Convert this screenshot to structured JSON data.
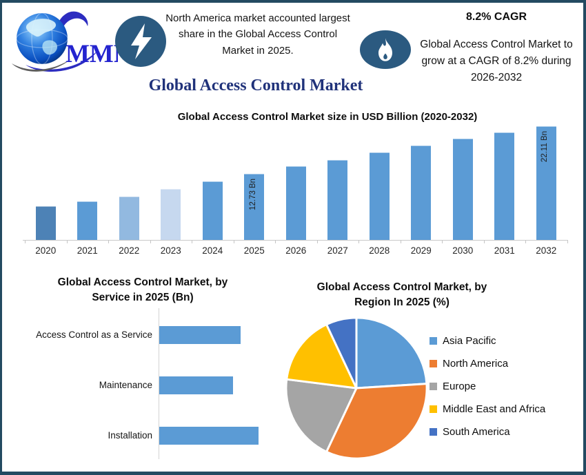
{
  "header": {
    "logo_text": "MMR",
    "note_left": "North America market accounted largest share in the Global Access Control Market in 2025.",
    "cagr_title": "8.2% CAGR",
    "cagr_text": "Global Access Control Market to grow at a CAGR of 8.2% during 2026-2032"
  },
  "page_title": "Global Access Control Market",
  "colors": {
    "frame_border": "#234a61",
    "badge": "#2b5a80",
    "title": "#20327a",
    "bar_default": "#5b9bd5",
    "axis_line": "#c9c9c9"
  },
  "chart_data": [
    {
      "type": "bar",
      "title": "Global Access Control Market size in USD Billion (2020-2032)",
      "categories": [
        "2020",
        "2021",
        "2022",
        "2023",
        "2024",
        "2025",
        "2026",
        "2027",
        "2028",
        "2029",
        "2030",
        "2031",
        "2032"
      ],
      "values": [
        6.4,
        7.4,
        8.4,
        9.8,
        11.3,
        12.73,
        14.3,
        15.4,
        16.9,
        18.3,
        19.6,
        20.8,
        22.11
      ],
      "unit": "USD Bn",
      "bar_labels": [
        "",
        "",
        "",
        "",
        "",
        "12.73 Bn",
        "",
        "",
        "",
        "",
        "",
        "",
        "22.11 Bn"
      ],
      "bar_colors": [
        "#4d82b6",
        "#5b9bd5",
        "#92b9e0",
        "#c6d8ef",
        "#5b9bd5",
        "#5b9bd5",
        "#5b9bd5",
        "#5b9bd5",
        "#5b9bd5",
        "#5b9bd5",
        "#5b9bd5",
        "#5b9bd5",
        "#5b9bd5"
      ],
      "ylim": [
        0,
        23
      ],
      "grid": false,
      "legend": "none"
    },
    {
      "type": "bar-horizontal",
      "title": "Global Access Control Market, by Service in 2025 (Bn)",
      "categories": [
        "Access Control as a Service",
        "Maintenance",
        "Installation"
      ],
      "values": [
        4.1,
        3.7,
        5.0
      ],
      "color": "#5b9bd5",
      "xlim": [
        0,
        5.6
      ],
      "grid": false,
      "legend": "none"
    },
    {
      "type": "pie",
      "title": "Global Access Control Market, by Region In 2025 (%)",
      "slices": [
        {
          "label": "Asia Pacific",
          "value": 24,
          "color": "#5b9bd5"
        },
        {
          "label": "North America",
          "value": 33,
          "color": "#ed7d31"
        },
        {
          "label": "Europe",
          "value": 20,
          "color": "#a5a5a5"
        },
        {
          "label": "Middle East and Africa",
          "value": 16,
          "color": "#ffc000"
        },
        {
          "label": "South America",
          "value": 7,
          "color": "#4472c4"
        }
      ],
      "legend_position": "right"
    }
  ]
}
